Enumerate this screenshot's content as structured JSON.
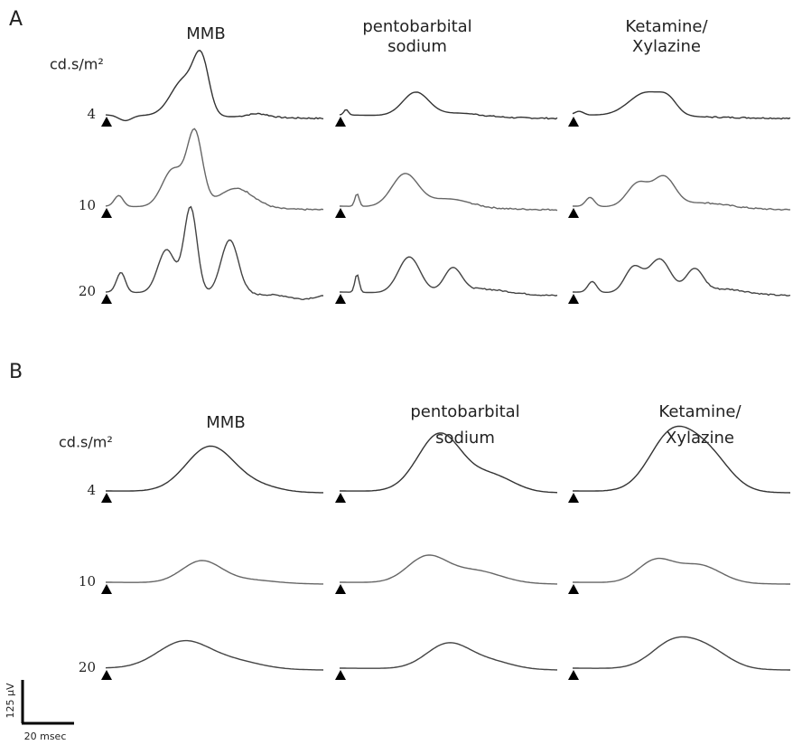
{
  "panels": [
    {
      "label": "A",
      "columns": [
        [
          "MMB"
        ],
        [
          "pentobarbital",
          "sodium"
        ],
        [
          "Ketamine/",
          "Xylazine"
        ]
      ],
      "unit": "cd.s/m²",
      "rows": [
        "4",
        "10",
        "20"
      ]
    },
    {
      "label": "B",
      "columns": [
        [
          "MMB"
        ],
        [
          "pentobarbital",
          "sodium"
        ],
        [
          "Ketamine/",
          "Xylazine"
        ]
      ],
      "unit": "cd.s/m²",
      "rows": [
        "4",
        "10",
        "20"
      ]
    }
  ],
  "scale_bar": {
    "vertical": "125 μV",
    "horizontal": "20 msec"
  }
}
